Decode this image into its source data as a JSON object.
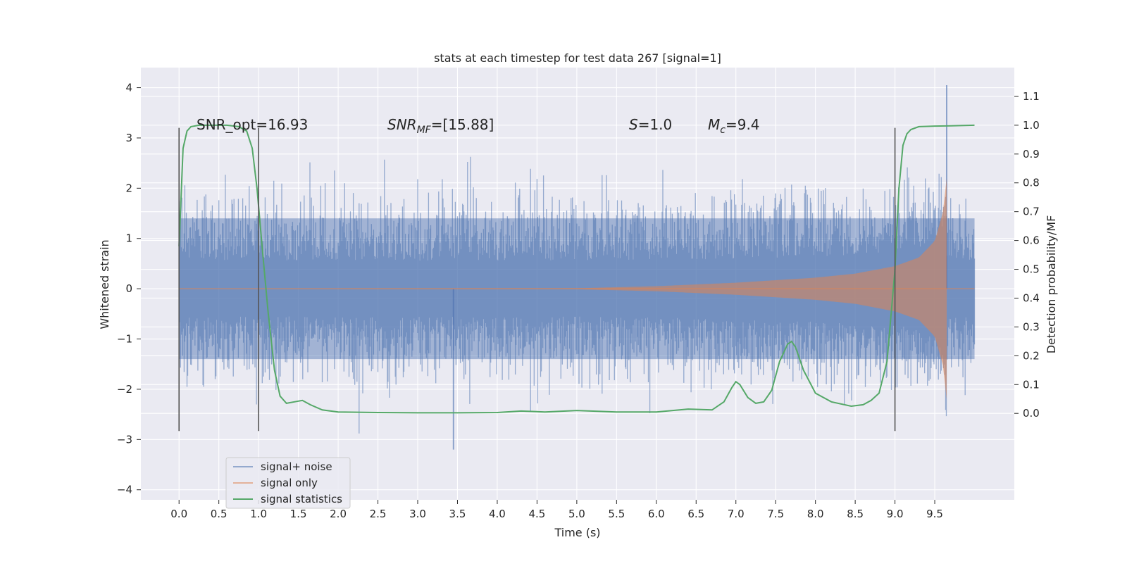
{
  "chart_data": {
    "type": "line",
    "title": "stats at each timestep for test data 267 [signal=1]",
    "xlabel": "Time (s)",
    "ylabel_left": "Whitened strain",
    "ylabel_right": "Detection probability/MF",
    "xlim": [
      -0.48,
      10.5
    ],
    "ylim_left": [
      -4.2,
      4.4
    ],
    "ylim_right": [
      -0.3,
      1.2
    ],
    "x_ticks": [
      0.0,
      0.5,
      1.0,
      1.5,
      2.0,
      2.5,
      3.0,
      3.5,
      4.0,
      4.5,
      5.0,
      5.5,
      6.0,
      6.5,
      7.0,
      7.5,
      8.0,
      8.5,
      9.0,
      9.5
    ],
    "x_tick_labels": [
      "0.0",
      "0.5",
      "1.0",
      "1.5",
      "2.0",
      "2.5",
      "3.0",
      "3.5",
      "4.0",
      "4.5",
      "5.0",
      "5.5",
      "6.0",
      "6.5",
      "7.0",
      "7.5",
      "8.0",
      "8.5",
      "9.0",
      "9.5"
    ],
    "y_left_ticks": [
      4,
      3,
      2,
      1,
      0,
      -1,
      -2,
      -3,
      -4
    ],
    "y_left_tick_labels": [
      "4",
      "3",
      "2",
      "1",
      "0",
      "−1",
      "−2",
      "−3",
      "−4"
    ],
    "y_right_ticks": [
      1.1,
      1.0,
      0.9,
      0.8,
      0.7,
      0.6,
      0.5,
      0.4,
      0.3,
      0.2,
      0.1,
      0.0
    ],
    "y_right_tick_labels": [
      "1.1",
      "1.0",
      "0.9",
      "0.8",
      "0.7",
      "0.6",
      "0.5",
      "0.4",
      "0.3",
      "0.2",
      "0.1",
      "0.0"
    ],
    "grid": true,
    "legend_position": "lower-left",
    "annotations": {
      "snr_opt": "SNR_opt=16.93",
      "snr_mf_base": "SNR",
      "snr_mf_sub": "MF",
      "snr_mf_value": "=[15.88]",
      "s_label": "S",
      "s_value": "=1.0",
      "mc_base": "M",
      "mc_sub": "c",
      "mc_value": "=9.4"
    },
    "window_markers_x": [
      0.0,
      1.0,
      9.0
    ],
    "window_markers_ylim": [
      -2.83,
      3.2
    ],
    "series": [
      {
        "name": "signal+ noise",
        "color": "#4c72b0",
        "axis": "left",
        "x_range": [
          0.0,
          10.0
        ],
        "envelope_core_abs": 1.4,
        "peak_max": 4.05,
        "peak_max_x": 9.65,
        "trough_min": -3.2,
        "trough_min_x": 3.45
      },
      {
        "name": "signal only",
        "color": "#dd8452",
        "axis": "left",
        "x_range": [
          0.0,
          10.0
        ],
        "merger_x": 9.65,
        "amplitude_x": [
          5.0,
          6.0,
          7.0,
          8.0,
          8.5,
          9.0,
          9.3,
          9.5,
          9.6,
          9.65
        ],
        "amplitude": [
          0.01,
          0.05,
          0.12,
          0.22,
          0.3,
          0.45,
          0.62,
          0.95,
          1.5,
          2.2
        ]
      },
      {
        "name": "signal statistics",
        "color": "#55a868",
        "axis": "right",
        "x": [
          0.0,
          0.05,
          0.1,
          0.15,
          0.25,
          0.4,
          0.6,
          0.75,
          0.85,
          0.92,
          0.98,
          1.05,
          1.12,
          1.2,
          1.27,
          1.35,
          1.45,
          1.55,
          1.65,
          1.8,
          2.0,
          2.5,
          3.0,
          3.5,
          4.0,
          4.3,
          4.6,
          5.0,
          5.5,
          6.0,
          6.4,
          6.7,
          6.85,
          6.95,
          7.0,
          7.05,
          7.15,
          7.25,
          7.35,
          7.45,
          7.55,
          7.65,
          7.7,
          7.75,
          7.85,
          8.0,
          8.2,
          8.45,
          8.6,
          8.7,
          8.8,
          8.9,
          9.0,
          9.05,
          9.1,
          9.15,
          9.2,
          9.3,
          9.5,
          9.7,
          10.0
        ],
        "y": [
          0.58,
          0.92,
          0.98,
          0.995,
          1.0,
          1.0,
          1.0,
          0.995,
          0.98,
          0.92,
          0.78,
          0.56,
          0.35,
          0.15,
          0.06,
          0.035,
          0.04,
          0.045,
          0.03,
          0.012,
          0.005,
          0.003,
          0.002,
          0.002,
          0.003,
          0.008,
          0.005,
          0.01,
          0.005,
          0.005,
          0.015,
          0.012,
          0.04,
          0.09,
          0.11,
          0.1,
          0.055,
          0.035,
          0.04,
          0.08,
          0.18,
          0.24,
          0.25,
          0.23,
          0.15,
          0.07,
          0.04,
          0.025,
          0.03,
          0.045,
          0.07,
          0.18,
          0.5,
          0.78,
          0.93,
          0.97,
          0.985,
          0.995,
          0.997,
          0.998,
          1.0
        ]
      }
    ]
  }
}
